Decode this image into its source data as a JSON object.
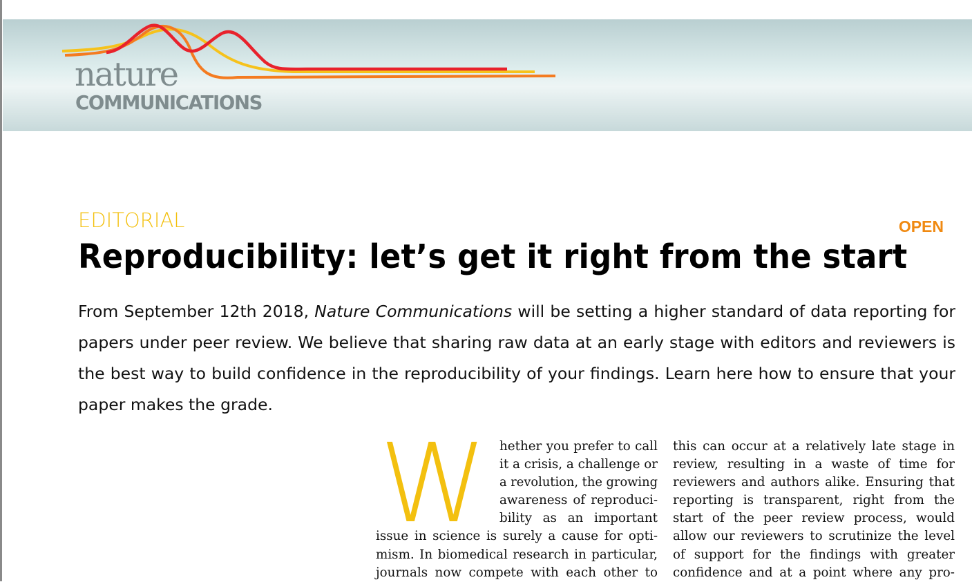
{
  "brand": {
    "nature": "nature",
    "communications": "COMMUNICATIONS",
    "colors": {
      "red": "#e8222c",
      "orange": "#f47b20",
      "yellow": "#f6c21b"
    }
  },
  "article": {
    "section": "EDITORIAL",
    "access": "OPEN",
    "title": "Reproducibility: let’s get it right from the start",
    "standfirst": {
      "before_italic": "From September 12th 2018, ",
      "italic": "Nature Communications",
      "after_italic": " will be setting a higher standard of data reporting for papers under peer review. We believe that sharing raw data at an early stage with editors and reviewers is the best way to build confidence in the reproducibility of your findings. Learn here how to ensure that your paper makes the grade."
    },
    "dropcap": "W",
    "body_left": [
      "hether you prefer to call",
      "it a crisis, a challenge or",
      "a revolution, the growing",
      "awareness of reproduci-",
      "bility as an important",
      "issue in science is surely a cause for opti-",
      "mism. In biomedical research in particular,",
      "journals now compete with each other to"
    ],
    "body_right": [
      "this can occur at a relatively late stage in",
      "review, resulting in a waste of time for",
      "reviewers and authors alike. Ensuring that",
      "reporting is transparent, right from the",
      "start of the peer review process, would",
      "allow our reviewers to scrutinize the level",
      "of support for the findings with greater",
      "confidence and at a point where any pro-"
    ]
  }
}
